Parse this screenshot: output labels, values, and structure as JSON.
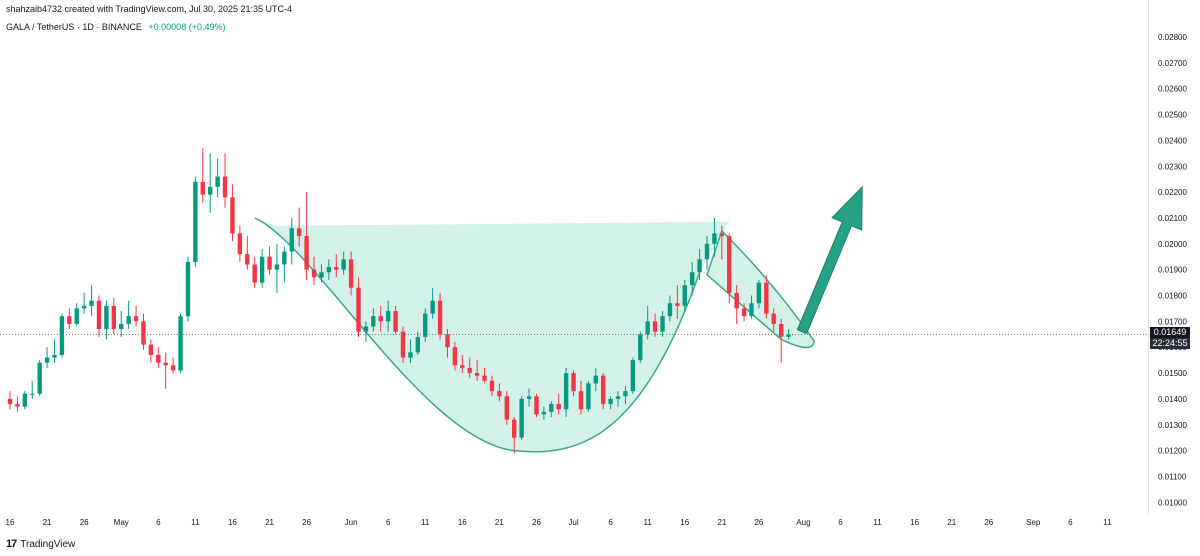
{
  "header": {
    "author_line": "shahzaib4732 created with TradingView.com, Jul 30, 2025 21:35 UTC-4",
    "symbol_line": "GALA / TetherUS · 1D · BINANCE",
    "change": "+0.00008 (+0.49%)"
  },
  "price_tag": {
    "price": "0.01649",
    "countdown": "22:24:55"
  },
  "footer": {
    "logo": "17",
    "brand": "TradingView"
  },
  "colors": {
    "up": "#089981",
    "down": "#f23645",
    "pattern_fill": "#cdeee5",
    "pattern_line": "#3aa88a",
    "arrow": "#26a185"
  },
  "chart_data": {
    "type": "candlestick",
    "ylim": [
      0.0095,
      0.0285
    ],
    "y_ticks": [
      "0.01000",
      "0.01100",
      "0.01200",
      "0.01300",
      "0.01400",
      "0.01500",
      "0.01600",
      "0.01700",
      "0.01800",
      "0.01900",
      "0.02000",
      "0.02100",
      "0.02200",
      "0.02300",
      "0.02400",
      "0.02500",
      "0.02600",
      "0.02700",
      "0.02800"
    ],
    "x_ticks": [
      {
        "label": "16",
        "date": "2025-04-16"
      },
      {
        "label": "21",
        "date": "2025-04-21"
      },
      {
        "label": "26",
        "date": "2025-04-26"
      },
      {
        "label": "May",
        "date": "2025-05-01"
      },
      {
        "label": "6",
        "date": "2025-05-06"
      },
      {
        "label": "11",
        "date": "2025-05-11"
      },
      {
        "label": "16",
        "date": "2025-05-16"
      },
      {
        "label": "21",
        "date": "2025-05-21"
      },
      {
        "label": "26",
        "date": "2025-05-26"
      },
      {
        "label": "Jun",
        "date": "2025-06-01"
      },
      {
        "label": "6",
        "date": "2025-06-06"
      },
      {
        "label": "11",
        "date": "2025-06-11"
      },
      {
        "label": "16",
        "date": "2025-06-16"
      },
      {
        "label": "21",
        "date": "2025-06-21"
      },
      {
        "label": "26",
        "date": "2025-06-26"
      },
      {
        "label": "Jul",
        "date": "2025-07-01"
      },
      {
        "label": "6",
        "date": "2025-07-06"
      },
      {
        "label": "11",
        "date": "2025-07-11"
      },
      {
        "label": "16",
        "date": "2025-07-16"
      },
      {
        "label": "21",
        "date": "2025-07-21"
      },
      {
        "label": "26",
        "date": "2025-07-26"
      },
      {
        "label": "Aug",
        "date": "2025-08-01"
      },
      {
        "label": "6",
        "date": "2025-08-06"
      },
      {
        "label": "11",
        "date": "2025-08-11"
      },
      {
        "label": "16",
        "date": "2025-08-16"
      },
      {
        "label": "21",
        "date": "2025-08-21"
      },
      {
        "label": "26",
        "date": "2025-08-26"
      },
      {
        "label": "Sep",
        "date": "2025-09-01"
      },
      {
        "label": "6",
        "date": "2025-09-06"
      },
      {
        "label": "11",
        "date": "2025-09-11"
      }
    ],
    "last_price": 0.01649,
    "candles": [
      {
        "d": "2025-04-16",
        "o": 0.014,
        "h": 0.0143,
        "l": 0.0136,
        "c": 0.0138
      },
      {
        "d": "2025-04-17",
        "o": 0.0138,
        "h": 0.0141,
        "l": 0.0135,
        "c": 0.0137
      },
      {
        "d": "2025-04-18",
        "o": 0.0137,
        "h": 0.0143,
        "l": 0.0136,
        "c": 0.0142
      },
      {
        "d": "2025-04-19",
        "o": 0.0142,
        "h": 0.0147,
        "l": 0.014,
        "c": 0.0142
      },
      {
        "d": "2025-04-20",
        "o": 0.0142,
        "h": 0.0155,
        "l": 0.0141,
        "c": 0.0154
      },
      {
        "d": "2025-04-21",
        "o": 0.0154,
        "h": 0.016,
        "l": 0.0152,
        "c": 0.0156
      },
      {
        "d": "2025-04-22",
        "o": 0.0156,
        "h": 0.0163,
        "l": 0.0154,
        "c": 0.0157
      },
      {
        "d": "2025-04-23",
        "o": 0.0157,
        "h": 0.0173,
        "l": 0.0156,
        "c": 0.0172
      },
      {
        "d": "2025-04-24",
        "o": 0.0172,
        "h": 0.0175,
        "l": 0.0167,
        "c": 0.0169
      },
      {
        "d": "2025-04-25",
        "o": 0.0169,
        "h": 0.0177,
        "l": 0.0168,
        "c": 0.0175
      },
      {
        "d": "2025-04-26",
        "o": 0.0175,
        "h": 0.0181,
        "l": 0.0173,
        "c": 0.0176
      },
      {
        "d": "2025-04-27",
        "o": 0.0176,
        "h": 0.0184,
        "l": 0.0172,
        "c": 0.0178
      },
      {
        "d": "2025-04-28",
        "o": 0.0178,
        "h": 0.018,
        "l": 0.0164,
        "c": 0.0167
      },
      {
        "d": "2025-04-29",
        "o": 0.0167,
        "h": 0.0178,
        "l": 0.0163,
        "c": 0.0176
      },
      {
        "d": "2025-04-30",
        "o": 0.0176,
        "h": 0.0179,
        "l": 0.0165,
        "c": 0.0167
      },
      {
        "d": "2025-05-01",
        "o": 0.0167,
        "h": 0.0174,
        "l": 0.0164,
        "c": 0.0169
      },
      {
        "d": "2025-05-02",
        "o": 0.0169,
        "h": 0.0178,
        "l": 0.0167,
        "c": 0.0172
      },
      {
        "d": "2025-05-03",
        "o": 0.0172,
        "h": 0.0176,
        "l": 0.0168,
        "c": 0.017
      },
      {
        "d": "2025-05-04",
        "o": 0.017,
        "h": 0.0173,
        "l": 0.0159,
        "c": 0.0161
      },
      {
        "d": "2025-05-05",
        "o": 0.0161,
        "h": 0.0163,
        "l": 0.0154,
        "c": 0.0157
      },
      {
        "d": "2025-05-06",
        "o": 0.0157,
        "h": 0.016,
        "l": 0.0152,
        "c": 0.0154
      },
      {
        "d": "2025-05-07",
        "o": 0.0154,
        "h": 0.0158,
        "l": 0.0144,
        "c": 0.0153
      },
      {
        "d": "2025-05-08",
        "o": 0.0153,
        "h": 0.0156,
        "l": 0.015,
        "c": 0.0151
      },
      {
        "d": "2025-05-09",
        "o": 0.0151,
        "h": 0.0173,
        "l": 0.015,
        "c": 0.0172
      },
      {
        "d": "2025-05-10",
        "o": 0.0172,
        "h": 0.0195,
        "l": 0.017,
        "c": 0.0193
      },
      {
        "d": "2025-05-11",
        "o": 0.0193,
        "h": 0.0226,
        "l": 0.0191,
        "c": 0.0224
      },
      {
        "d": "2025-05-12",
        "o": 0.0224,
        "h": 0.0237,
        "l": 0.0216,
        "c": 0.0219
      },
      {
        "d": "2025-05-13",
        "o": 0.0219,
        "h": 0.0235,
        "l": 0.0212,
        "c": 0.0222
      },
      {
        "d": "2025-05-14",
        "o": 0.0222,
        "h": 0.0233,
        "l": 0.0218,
        "c": 0.0226
      },
      {
        "d": "2025-05-15",
        "o": 0.0226,
        "h": 0.0235,
        "l": 0.0214,
        "c": 0.0218
      },
      {
        "d": "2025-05-16",
        "o": 0.0218,
        "h": 0.0223,
        "l": 0.0201,
        "c": 0.0204
      },
      {
        "d": "2025-05-17",
        "o": 0.0204,
        "h": 0.0207,
        "l": 0.0193,
        "c": 0.0196
      },
      {
        "d": "2025-05-18",
        "o": 0.0196,
        "h": 0.0203,
        "l": 0.019,
        "c": 0.0192
      },
      {
        "d": "2025-05-19",
        "o": 0.0192,
        "h": 0.0195,
        "l": 0.0183,
        "c": 0.0185
      },
      {
        "d": "2025-05-20",
        "o": 0.0185,
        "h": 0.0198,
        "l": 0.0183,
        "c": 0.0195
      },
      {
        "d": "2025-05-21",
        "o": 0.0195,
        "h": 0.0199,
        "l": 0.0188,
        "c": 0.019
      },
      {
        "d": "2025-05-22",
        "o": 0.019,
        "h": 0.02,
        "l": 0.0181,
        "c": 0.0192
      },
      {
        "d": "2025-05-23",
        "o": 0.0192,
        "h": 0.0199,
        "l": 0.0185,
        "c": 0.0197
      },
      {
        "d": "2025-05-24",
        "o": 0.0197,
        "h": 0.021,
        "l": 0.0192,
        "c": 0.0206
      },
      {
        "d": "2025-05-25",
        "o": 0.0206,
        "h": 0.0214,
        "l": 0.0199,
        "c": 0.0203
      },
      {
        "d": "2025-05-26",
        "o": 0.0203,
        "h": 0.022,
        "l": 0.0186,
        "c": 0.019
      },
      {
        "d": "2025-05-27",
        "o": 0.019,
        "h": 0.0195,
        "l": 0.0184,
        "c": 0.0187
      },
      {
        "d": "2025-05-28",
        "o": 0.0187,
        "h": 0.0192,
        "l": 0.0185,
        "c": 0.0189
      },
      {
        "d": "2025-05-29",
        "o": 0.0189,
        "h": 0.0194,
        "l": 0.0186,
        "c": 0.0191
      },
      {
        "d": "2025-05-30",
        "o": 0.0191,
        "h": 0.0196,
        "l": 0.0187,
        "c": 0.019
      },
      {
        "d": "2025-05-31",
        "o": 0.019,
        "h": 0.0197,
        "l": 0.0188,
        "c": 0.0194
      },
      {
        "d": "2025-06-01",
        "o": 0.0194,
        "h": 0.0197,
        "l": 0.018,
        "c": 0.0183
      },
      {
        "d": "2025-06-02",
        "o": 0.0183,
        "h": 0.0187,
        "l": 0.0164,
        "c": 0.0166
      },
      {
        "d": "2025-06-03",
        "o": 0.0166,
        "h": 0.017,
        "l": 0.0162,
        "c": 0.0168
      },
      {
        "d": "2025-06-04",
        "o": 0.0168,
        "h": 0.0175,
        "l": 0.0166,
        "c": 0.0172
      },
      {
        "d": "2025-06-05",
        "o": 0.0172,
        "h": 0.0176,
        "l": 0.0166,
        "c": 0.017
      },
      {
        "d": "2025-06-06",
        "o": 0.017,
        "h": 0.0178,
        "l": 0.0166,
        "c": 0.0174
      },
      {
        "d": "2025-06-07",
        "o": 0.0174,
        "h": 0.0176,
        "l": 0.0165,
        "c": 0.0166
      },
      {
        "d": "2025-06-08",
        "o": 0.0166,
        "h": 0.0168,
        "l": 0.0154,
        "c": 0.0156
      },
      {
        "d": "2025-06-09",
        "o": 0.0156,
        "h": 0.0163,
        "l": 0.0154,
        "c": 0.0158
      },
      {
        "d": "2025-06-10",
        "o": 0.0158,
        "h": 0.0166,
        "l": 0.0157,
        "c": 0.0164
      },
      {
        "d": "2025-06-11",
        "o": 0.0164,
        "h": 0.0175,
        "l": 0.0162,
        "c": 0.0173
      },
      {
        "d": "2025-06-12",
        "o": 0.0173,
        "h": 0.0183,
        "l": 0.0171,
        "c": 0.0178
      },
      {
        "d": "2025-06-13",
        "o": 0.0178,
        "h": 0.0181,
        "l": 0.0163,
        "c": 0.0165
      },
      {
        "d": "2025-06-14",
        "o": 0.0165,
        "h": 0.0167,
        "l": 0.0156,
        "c": 0.016
      },
      {
        "d": "2025-06-15",
        "o": 0.016,
        "h": 0.0162,
        "l": 0.0151,
        "c": 0.0153
      },
      {
        "d": "2025-06-16",
        "o": 0.0153,
        "h": 0.0157,
        "l": 0.015,
        "c": 0.0152
      },
      {
        "d": "2025-06-17",
        "o": 0.0152,
        "h": 0.0156,
        "l": 0.0148,
        "c": 0.015
      },
      {
        "d": "2025-06-18",
        "o": 0.015,
        "h": 0.0155,
        "l": 0.0147,
        "c": 0.0149
      },
      {
        "d": "2025-06-19",
        "o": 0.0149,
        "h": 0.0152,
        "l": 0.0146,
        "c": 0.0147
      },
      {
        "d": "2025-06-20",
        "o": 0.0147,
        "h": 0.0149,
        "l": 0.0141,
        "c": 0.0143
      },
      {
        "d": "2025-06-21",
        "o": 0.0143,
        "h": 0.0146,
        "l": 0.0139,
        "c": 0.0141
      },
      {
        "d": "2025-06-22",
        "o": 0.0141,
        "h": 0.0143,
        "l": 0.013,
        "c": 0.0132
      },
      {
        "d": "2025-06-23",
        "o": 0.0132,
        "h": 0.0133,
        "l": 0.0119,
        "c": 0.0125
      },
      {
        "d": "2025-06-24",
        "o": 0.0125,
        "h": 0.0141,
        "l": 0.0124,
        "c": 0.014
      },
      {
        "d": "2025-06-25",
        "o": 0.014,
        "h": 0.0144,
        "l": 0.0137,
        "c": 0.0141
      },
      {
        "d": "2025-06-26",
        "o": 0.0141,
        "h": 0.0142,
        "l": 0.0133,
        "c": 0.0134
      },
      {
        "d": "2025-06-27",
        "o": 0.0134,
        "h": 0.0137,
        "l": 0.0132,
        "c": 0.0135
      },
      {
        "d": "2025-06-28",
        "o": 0.0135,
        "h": 0.0139,
        "l": 0.0133,
        "c": 0.0138
      },
      {
        "d": "2025-06-29",
        "o": 0.0138,
        "h": 0.0142,
        "l": 0.0134,
        "c": 0.0136
      },
      {
        "d": "2025-06-30",
        "o": 0.0136,
        "h": 0.0152,
        "l": 0.0133,
        "c": 0.015
      },
      {
        "d": "2025-07-01",
        "o": 0.015,
        "h": 0.0151,
        "l": 0.0141,
        "c": 0.0143
      },
      {
        "d": "2025-07-02",
        "o": 0.0143,
        "h": 0.0147,
        "l": 0.0134,
        "c": 0.0136
      },
      {
        "d": "2025-07-03",
        "o": 0.0136,
        "h": 0.0147,
        "l": 0.0135,
        "c": 0.0146
      },
      {
        "d": "2025-07-04",
        "o": 0.0146,
        "h": 0.0152,
        "l": 0.0143,
        "c": 0.0149
      },
      {
        "d": "2025-07-05",
        "o": 0.0149,
        "h": 0.015,
        "l": 0.0136,
        "c": 0.0138
      },
      {
        "d": "2025-07-06",
        "o": 0.0138,
        "h": 0.0141,
        "l": 0.0136,
        "c": 0.014
      },
      {
        "d": "2025-07-07",
        "o": 0.014,
        "h": 0.0143,
        "l": 0.0137,
        "c": 0.0141
      },
      {
        "d": "2025-07-08",
        "o": 0.0141,
        "h": 0.0145,
        "l": 0.0138,
        "c": 0.0143
      },
      {
        "d": "2025-07-09",
        "o": 0.0143,
        "h": 0.0156,
        "l": 0.0142,
        "c": 0.0155
      },
      {
        "d": "2025-07-10",
        "o": 0.0155,
        "h": 0.0166,
        "l": 0.0154,
        "c": 0.0165
      },
      {
        "d": "2025-07-11",
        "o": 0.0165,
        "h": 0.0176,
        "l": 0.0163,
        "c": 0.017
      },
      {
        "d": "2025-07-12",
        "o": 0.017,
        "h": 0.0173,
        "l": 0.0164,
        "c": 0.0166
      },
      {
        "d": "2025-07-13",
        "o": 0.0166,
        "h": 0.0174,
        "l": 0.0164,
        "c": 0.0172
      },
      {
        "d": "2025-07-14",
        "o": 0.0172,
        "h": 0.018,
        "l": 0.017,
        "c": 0.0177
      },
      {
        "d": "2025-07-15",
        "o": 0.0177,
        "h": 0.0184,
        "l": 0.0171,
        "c": 0.0176
      },
      {
        "d": "2025-07-16",
        "o": 0.0176,
        "h": 0.0186,
        "l": 0.0174,
        "c": 0.0184
      },
      {
        "d": "2025-07-17",
        "o": 0.0184,
        "h": 0.0193,
        "l": 0.018,
        "c": 0.0189
      },
      {
        "d": "2025-07-18",
        "o": 0.0189,
        "h": 0.0198,
        "l": 0.0186,
        "c": 0.0194
      },
      {
        "d": "2025-07-19",
        "o": 0.0194,
        "h": 0.0203,
        "l": 0.019,
        "c": 0.02
      },
      {
        "d": "2025-07-20",
        "o": 0.02,
        "h": 0.021,
        "l": 0.0195,
        "c": 0.0204
      },
      {
        "d": "2025-07-21",
        "o": 0.0204,
        "h": 0.0207,
        "l": 0.0194,
        "c": 0.0203
      },
      {
        "d": "2025-07-22",
        "o": 0.0203,
        "h": 0.0204,
        "l": 0.0177,
        "c": 0.0181
      },
      {
        "d": "2025-07-23",
        "o": 0.0181,
        "h": 0.0184,
        "l": 0.0169,
        "c": 0.0175
      },
      {
        "d": "2025-07-24",
        "o": 0.0175,
        "h": 0.0177,
        "l": 0.017,
        "c": 0.0172
      },
      {
        "d": "2025-07-25",
        "o": 0.0172,
        "h": 0.018,
        "l": 0.0171,
        "c": 0.0177
      },
      {
        "d": "2025-07-26",
        "o": 0.0177,
        "h": 0.0186,
        "l": 0.0175,
        "c": 0.0185
      },
      {
        "d": "2025-07-27",
        "o": 0.0185,
        "h": 0.0188,
        "l": 0.0171,
        "c": 0.0173
      },
      {
        "d": "2025-07-28",
        "o": 0.0173,
        "h": 0.0175,
        "l": 0.0166,
        "c": 0.0169
      },
      {
        "d": "2025-07-29",
        "o": 0.0169,
        "h": 0.0171,
        "l": 0.0154,
        "c": 0.0164
      },
      {
        "d": "2025-07-30",
        "o": 0.0164,
        "h": 0.0167,
        "l": 0.0163,
        "c": 0.01649
      }
    ],
    "pattern": {
      "name": "cup and handle",
      "rim_level": 0.0208,
      "cup_start": "2025-05-24",
      "cup_end": "2025-07-21",
      "cup_bottom": {
        "d": "2025-06-23",
        "p": 0.012
      },
      "handle_upper": [
        {
          "d": "2025-07-19",
          "p": 0.0188
        },
        {
          "d": "2025-07-21",
          "p": 0.0205
        },
        {
          "d": "2025-07-30",
          "p": 0.0167
        },
        {
          "d": "2025-07-31",
          "p": 0.0161
        },
        {
          "d": "2025-07-30",
          "p": 0.0159
        },
        {
          "d": "2025-07-24",
          "p": 0.0172
        }
      ],
      "target_arrow": {
        "from": {
          "d": "2025-07-31",
          "p": 0.0166
        },
        "to": {
          "d": "2025-08-03",
          "p": 0.0222
        }
      }
    }
  }
}
